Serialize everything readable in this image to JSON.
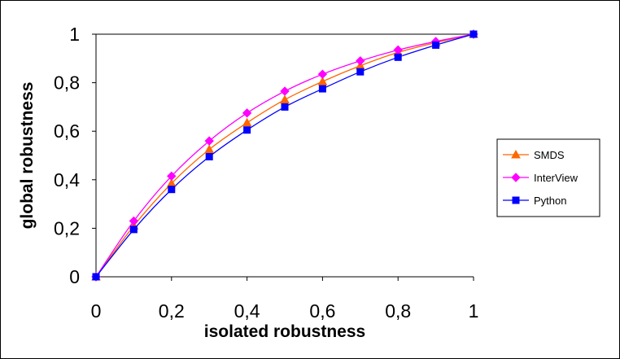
{
  "chart_data": {
    "type": "line",
    "title": "",
    "xlabel": "isolated robustness",
    "ylabel": "global robustness",
    "xlim": [
      0,
      1
    ],
    "ylim": [
      0,
      1
    ],
    "x_ticks": [
      "0",
      "0,2",
      "0,4",
      "0,6",
      "0,8",
      "1"
    ],
    "y_ticks": [
      "0",
      "0,2",
      "0,4",
      "0,6",
      "0,8",
      "1"
    ],
    "grid": false,
    "legend_position": "right",
    "x": [
      0,
      0.1,
      0.2,
      0.3,
      0.4,
      0.5,
      0.6,
      0.7,
      0.8,
      0.9,
      1.0
    ],
    "series": [
      {
        "name": "SMDS",
        "marker": "triangle",
        "color": "#ff6600",
        "values": [
          0,
          0.21,
          0.385,
          0.525,
          0.635,
          0.73,
          0.805,
          0.87,
          0.925,
          0.965,
          1.0
        ]
      },
      {
        "name": "InterView",
        "marker": "diamond",
        "color": "#ff00ff",
        "values": [
          0,
          0.23,
          0.415,
          0.56,
          0.675,
          0.765,
          0.835,
          0.89,
          0.935,
          0.97,
          1.0
        ]
      },
      {
        "name": "Python",
        "marker": "square",
        "color": "#0000ff",
        "values": [
          0,
          0.195,
          0.36,
          0.495,
          0.605,
          0.7,
          0.775,
          0.845,
          0.905,
          0.955,
          1.0
        ]
      }
    ]
  }
}
